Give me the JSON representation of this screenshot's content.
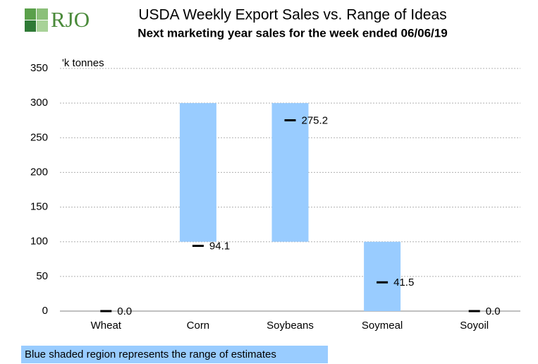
{
  "chart_data": {
    "type": "range-bar",
    "logo": "RJO",
    "title": "USDA Weekly Export Sales vs. Range of Ideas",
    "subtitle": "Next marketing year sales for the week ended 06/06/19",
    "y_label": "'k tonnes",
    "categories": [
      "Wheat",
      "Corn",
      "Soybeans",
      "Soymeal",
      "Soyoil"
    ],
    "ranges": {
      "low": [
        null,
        100,
        100,
        0,
        null
      ],
      "high": [
        null,
        300,
        300,
        100,
        null
      ],
      "color": "#99ccff"
    },
    "values": [
      0,
      94.1,
      275.2,
      41.5,
      0
    ],
    "value_labels": [
      "0.0",
      "94.1",
      "275.2",
      "41.5",
      "0.0"
    ],
    "marker_color": "#000000",
    "ylim": [
      0,
      350
    ],
    "yticks": [
      0,
      50,
      100,
      150,
      200,
      250,
      300,
      350
    ],
    "grid": true,
    "note": "Blue shaded region represents the range of estimates"
  }
}
